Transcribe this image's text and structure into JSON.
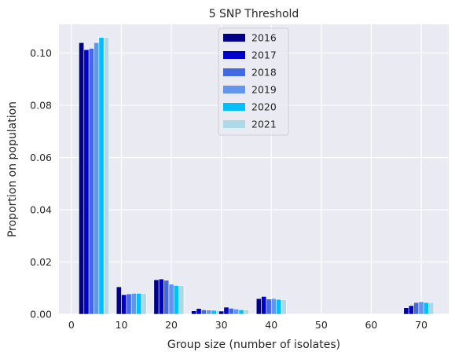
{
  "chart_data": {
    "type": "bar",
    "title": "5 SNP Threshold",
    "xlabel": "Group size (number of isolates)",
    "ylabel": "Proportion on population",
    "xlim": [
      -2.5,
      75.5
    ],
    "ylim": [
      0,
      0.111
    ],
    "x_ticks": [
      0,
      10,
      20,
      30,
      40,
      50,
      60,
      70
    ],
    "y_ticks": [
      0.0,
      0.02,
      0.04,
      0.06,
      0.08,
      0.1
    ],
    "x_tick_labels": [
      "0",
      "10",
      "20",
      "30",
      "40",
      "50",
      "60",
      "70"
    ],
    "y_tick_labels": [
      "0.00",
      "0.02",
      "0.04",
      "0.06",
      "0.08",
      "0.10"
    ],
    "grid": true,
    "legend_position": "top-center",
    "background": "#eaeaf2",
    "group_centers": [
      4.5,
      12.0,
      19.5,
      27.0,
      32.5,
      40.0,
      69.5
    ],
    "bar_width_data": 1.0,
    "series": [
      {
        "name": "2016",
        "color": "#00008b",
        "values": [
          0.104,
          0.0105,
          0.0132,
          0.0013,
          0.0012,
          0.006,
          0.0025
        ]
      },
      {
        "name": "2017",
        "color": "#0000cd",
        "values": [
          0.1013,
          0.0075,
          0.0135,
          0.0022,
          0.0027,
          0.0068,
          0.0033
        ]
      },
      {
        "name": "2018",
        "color": "#4169e1",
        "values": [
          0.1018,
          0.0078,
          0.013,
          0.0017,
          0.0023,
          0.0058,
          0.0045
        ]
      },
      {
        "name": "2019",
        "color": "#6495ed",
        "values": [
          0.104,
          0.008,
          0.0115,
          0.0016,
          0.002,
          0.006,
          0.0048
        ]
      },
      {
        "name": "2020",
        "color": "#00bfff",
        "values": [
          0.106,
          0.008,
          0.011,
          0.0015,
          0.0017,
          0.0057,
          0.0045
        ]
      },
      {
        "name": "2021",
        "color": "#add8e6",
        "values": [
          0.106,
          0.008,
          0.011,
          0.0015,
          0.0017,
          0.0055,
          0.0045
        ]
      }
    ]
  }
}
